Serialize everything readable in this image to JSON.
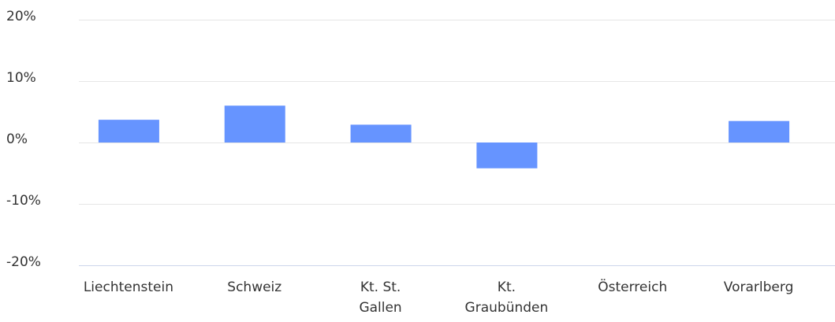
{
  "chart_data": {
    "type": "bar",
    "categories": [
      "Liechtenstein",
      "Schweiz",
      "Kt. St.\nGallen",
      "Kt.\nGraubünden",
      "Österreich",
      "Vorarlberg"
    ],
    "values": [
      3.7,
      6.0,
      2.9,
      -4.2,
      0,
      3.5
    ],
    "color": "#6694ff",
    "ylim": [
      -20,
      20
    ],
    "yticks": [
      {
        "value": -20,
        "label": "-20%"
      },
      {
        "value": -10,
        "label": "-10%"
      },
      {
        "value": 0,
        "label": "0%"
      },
      {
        "value": 10,
        "label": "10%"
      },
      {
        "value": 20,
        "label": "20%"
      }
    ],
    "grid": true
  }
}
